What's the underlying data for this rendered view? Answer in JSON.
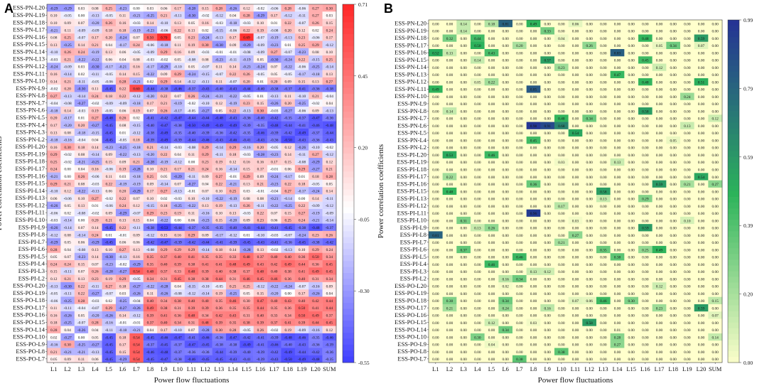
{
  "chart_data": [
    {
      "type": "heatmap",
      "panel": "A",
      "ylabel": "Power correlation coefficients",
      "xlabel": "Power flow fluctuations",
      "colorbar": {
        "min": -0.55,
        "max": 0.71,
        "ticks": [
          "0.71",
          "0.45",
          "0.20",
          "-0.05",
          "-0.30",
          "-0.55"
        ],
        "low_color": "#3b3bff",
        "mid_color": "#ffffff",
        "high_color": "#ff2a2a"
      },
      "show_cell_labels": true,
      "shown_values": {
        "ESS-PN-L16": {
          "L8": 0.5,
          "L9": 0.7,
          "L15": 0.69
        },
        "ESS-PN-L9": {
          "L7": 0.6
        },
        "ESS-PI-L3": {
          "L7": 0.54
        },
        "ESS-PO-L9": {
          "L7": 0.54
        },
        "ESS-PN-L5": {
          "L5": -0.48
        },
        "ESS-PI-L9": {
          "L9": -0.53
        },
        "ESS-PO-L10": {
          "L9": -0.46
        }
      }
    },
    {
      "type": "heatmap",
      "panel": "B",
      "ylabel": "Power correlation coefficients",
      "xlabel": "Power flow fluctuations",
      "colorbar": {
        "min": 0.0,
        "max": 0.99,
        "ticks": [
          "0.99",
          "0.79",
          "0.59",
          "0.39",
          "0.20",
          "0.00"
        ],
        "low_color": "#ffffcc",
        "mid_color": "#2cb35a",
        "high_color": "#253494"
      },
      "show_cell_labels": true,
      "shown_values": {
        "ESS-PN-L20": {
          "L3": 0.14,
          "L5": 0.18,
          "L6": 0.81,
          "L8": 0.49,
          "L11": 0.06
        },
        "ESS-PN-L18": {
          "L2": 0.32
        },
        "ESS-PN-L17": {
          "L4": 0.5,
          "L7": 0.2,
          "L12": 0.26
        },
        "ESS-PN-L16": {
          "L1": 0.52,
          "L2": 0.13,
          "L14": 0.83
        },
        "ESS-PN-L14": {
          "L17": 0.12
        },
        "ESS-PN-L11": {
          "L1": 0.49,
          "L8": 0.85
        },
        "ESS-PN-L6": {
          "L8": 0.98,
          "L9": 0.91,
          "L10": 0.68
        },
        "ESS-PI-L11": {
          "L8": 0.96
        },
        "ESS-PI-L8": {
          "L1": 0.81
        }
      }
    }
  ],
  "rows": [
    "ESS-PN-L20",
    "ESS-PN-L19",
    "ESS-PN-L18",
    "ESS-PN-L17",
    "ESS-PN-L16",
    "ESS-PN-L15",
    "ESS-PN-L14",
    "ESS-PN-L13",
    "ESS-PN-L12",
    "ESS-PN-L11",
    "ESS-PN-L10",
    "ESS-PN-L9",
    "ESS-PN-L8",
    "ESS-PN-L7",
    "ESS-PN-L6",
    "ESS-PN-L5",
    "ESS-PN-L4",
    "ESS-PN-L3",
    "ESS-PN-L2",
    "ESS-PI-L20",
    "ESS-PI-L19",
    "ESS-PI-L18",
    "ESS-PI-L17",
    "ESS-PI-L16",
    "ESS-PI-L15",
    "ESS-PI-L14",
    "ESS-PI-L13",
    "ESS-PI-L12",
    "ESS-PI-L11",
    "ESS-PI-L10",
    "ESS-PI-L9",
    "ESS-PI-L8",
    "ESS-PI-L7",
    "ESS-PI-L6",
    "ESS-PI-L5",
    "ESS-PI-L4",
    "ESS-PI-L3",
    "ESS-PI-L2",
    "ESS-PO-L20",
    "ESS-PO-L19",
    "ESS-PO-L18",
    "ESS-PO-L17",
    "ESS-PO-L16",
    "ESS-PO-L15",
    "ESS-PO-L14",
    "ESS-PO-L10",
    "ESS-PO-L9",
    "ESS-PO-L8",
    "ESS-PO-L7"
  ],
  "rowsB": [
    "ESS-PN-L20",
    "ESS-PN-L19",
    "ESS-PN-L18",
    "ESS-PN-L17",
    "ESS-PN-L16",
    "ESS-PN-L15",
    "ESS-PN-L14",
    "ESS-PN-L13",
    "ESS-PN-L12",
    "ESS-PN-L11",
    "ESS-PN-L10",
    "ESS-PN-L9",
    "ESS-PN-L8",
    "ESS-PN-L7",
    "ESS-PN-L6",
    "ESS-PN-L5",
    "ESS-PN-L4",
    "ESS-PN-L2",
    "ESS-PI-L20",
    "ESS-PI-L19",
    "ESS-PI-L18",
    "ESS-PI-L17",
    "ESS-PI-L16",
    "ESS-PI-L15",
    "ESS-PI-L13",
    "ESS-PI-L12",
    "ESS-PI-L11",
    "ESS-PI-L10",
    "ESS-PI-L9",
    "ESS-PI-L8",
    "ESS-PI-L7",
    "ESS-PI-L6",
    "ESS-PI-L5",
    "ESS-PI-L4",
    "ESS-PI-L3",
    "ESS-PI-L2",
    "ESS-PO-L20",
    "ESS-PO-L19",
    "ESS-PO-L18",
    "ESS-PO-L17",
    "ESS-PO-L16",
    "ESS-PO-L15",
    "ESS-PO-L14",
    "ESS-PO-L10",
    "ESS-PO-L9",
    "ESS-PO-L8",
    "ESS-PO-L7"
  ],
  "cols": [
    "L1",
    "L2",
    "L3",
    "L4",
    "L5",
    "L6",
    "L7",
    "L8",
    "L9",
    "L10",
    "L11",
    "L12",
    "L13",
    "L14",
    "L15",
    "L16",
    "L17",
    "L18",
    "L19",
    "L20",
    "SUM"
  ]
}
